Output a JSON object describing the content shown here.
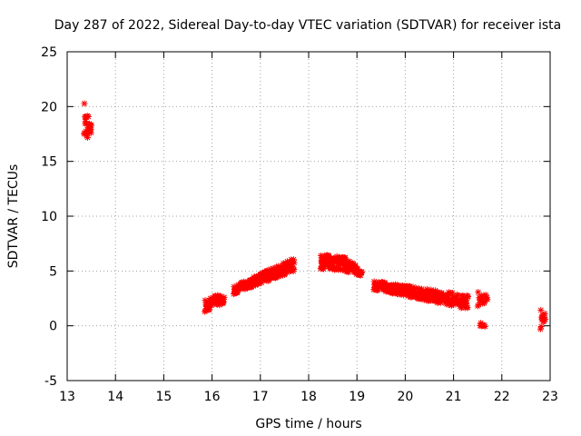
{
  "chart_data": {
    "type": "scatter",
    "title": "Day 287 of 2022, Sidereal Day-to-day VTEC variation (SDTVAR) for receiver ista",
    "xlabel": "GPS time / hours",
    "ylabel": "SDTVAR / TECUs",
    "xlim": [
      13,
      23
    ],
    "ylim": [
      -5,
      25
    ],
    "xticks": [
      "13",
      "14",
      "15",
      "16",
      "17",
      "18",
      "19",
      "20",
      "21",
      "22",
      "23"
    ],
    "yticks": [
      "-5",
      "0",
      "5",
      "10",
      "15",
      "20",
      "25"
    ],
    "grid": true,
    "series_color": "#ff0000",
    "segments": [
      {
        "name": "seg1",
        "x_start": 13.35,
        "x_end": 13.5,
        "y_top_start": 20.6,
        "y_top_end": 18.3,
        "y_bot_start": 17.5,
        "y_bot_end": 16.8,
        "count": 28
      },
      {
        "name": "seg2",
        "x_start": 15.85,
        "x_end": 16.25,
        "y_top_start": 2.4,
        "y_top_end": 3.0,
        "y_bot_start": 1.3,
        "y_bot_end": 2.0,
        "count": 55
      },
      {
        "name": "seg3",
        "x_start": 16.45,
        "x_end": 17.7,
        "y_top_start": 3.6,
        "y_top_end": 6.2,
        "y_bot_start": 2.9,
        "y_bot_end": 5.0,
        "count": 220
      },
      {
        "name": "seg4",
        "x_start": 18.25,
        "x_end": 18.75,
        "y_top_start": 6.5,
        "y_top_end": 6.3,
        "y_bot_start": 5.2,
        "y_bot_end": 5.0,
        "count": 110
      },
      {
        "name": "seg5",
        "x_start": 18.75,
        "x_end": 19.1,
        "y_top_start": 6.3,
        "y_top_end": 5.0,
        "y_bot_start": 5.0,
        "y_bot_end": 4.5,
        "count": 60
      },
      {
        "name": "seg6",
        "x_start": 19.35,
        "x_end": 21.3,
        "y_top_start": 4.1,
        "y_top_end": 2.8,
        "y_bot_start": 3.3,
        "y_bot_end": 1.5,
        "count": 320
      },
      {
        "name": "seg7",
        "x_start": 21.5,
        "x_end": 21.7,
        "y_top_start": 3.2,
        "y_top_end": 2.8,
        "y_bot_start": 1.8,
        "y_bot_end": 2.2,
        "count": 20
      },
      {
        "name": "seg8",
        "x_start": 21.55,
        "x_end": 21.65,
        "y_top_start": 0.3,
        "y_top_end": 0.1,
        "y_bot_start": 0.0,
        "y_bot_end": -0.1,
        "count": 8
      },
      {
        "name": "seg9",
        "x_start": 22.8,
        "x_end": 22.9,
        "y_top_start": 1.6,
        "y_top_end": 1.2,
        "y_bot_start": -0.3,
        "y_bot_end": 0.6,
        "count": 14
      }
    ]
  }
}
